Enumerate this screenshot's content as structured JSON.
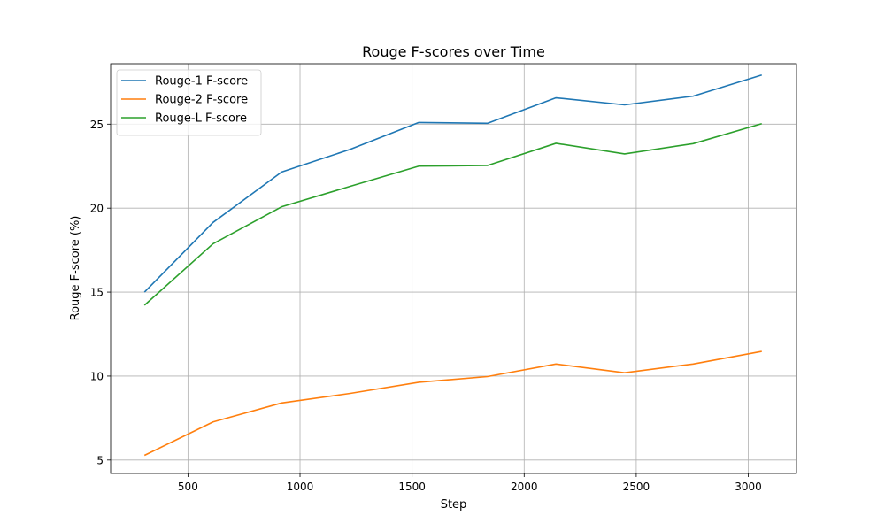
{
  "chart_data": {
    "type": "line",
    "title": "Rouge F-scores over Time",
    "xlabel": "Step",
    "ylabel": "Rouge F-score (%)",
    "xlim": [
      155,
      3215
    ],
    "ylim": [
      4.2,
      28.6
    ],
    "xticks": [
      500,
      1000,
      1500,
      2000,
      2500,
      3000
    ],
    "yticks": [
      5,
      10,
      15,
      20,
      25
    ],
    "grid": true,
    "legend_position": "top-left",
    "x": [
      306,
      612,
      918,
      1224,
      1530,
      1836,
      2142,
      2448,
      2754,
      3060
    ],
    "series": [
      {
        "name": "Rouge-1 F-score",
        "color": "#1f77b4",
        "values": [
          15.0,
          19.15,
          22.15,
          23.5,
          25.1,
          25.05,
          26.57,
          26.15,
          26.67,
          27.93
        ]
      },
      {
        "name": "Rouge-2 F-score",
        "color": "#ff7f0e",
        "values": [
          5.28,
          7.27,
          8.4,
          8.97,
          9.63,
          9.97,
          10.72,
          10.2,
          10.72,
          11.47
        ]
      },
      {
        "name": "Rouge-L F-score",
        "color": "#2ca02c",
        "values": [
          14.22,
          17.88,
          20.08,
          21.3,
          22.5,
          22.54,
          23.86,
          23.23,
          23.84,
          25.03
        ]
      }
    ]
  }
}
